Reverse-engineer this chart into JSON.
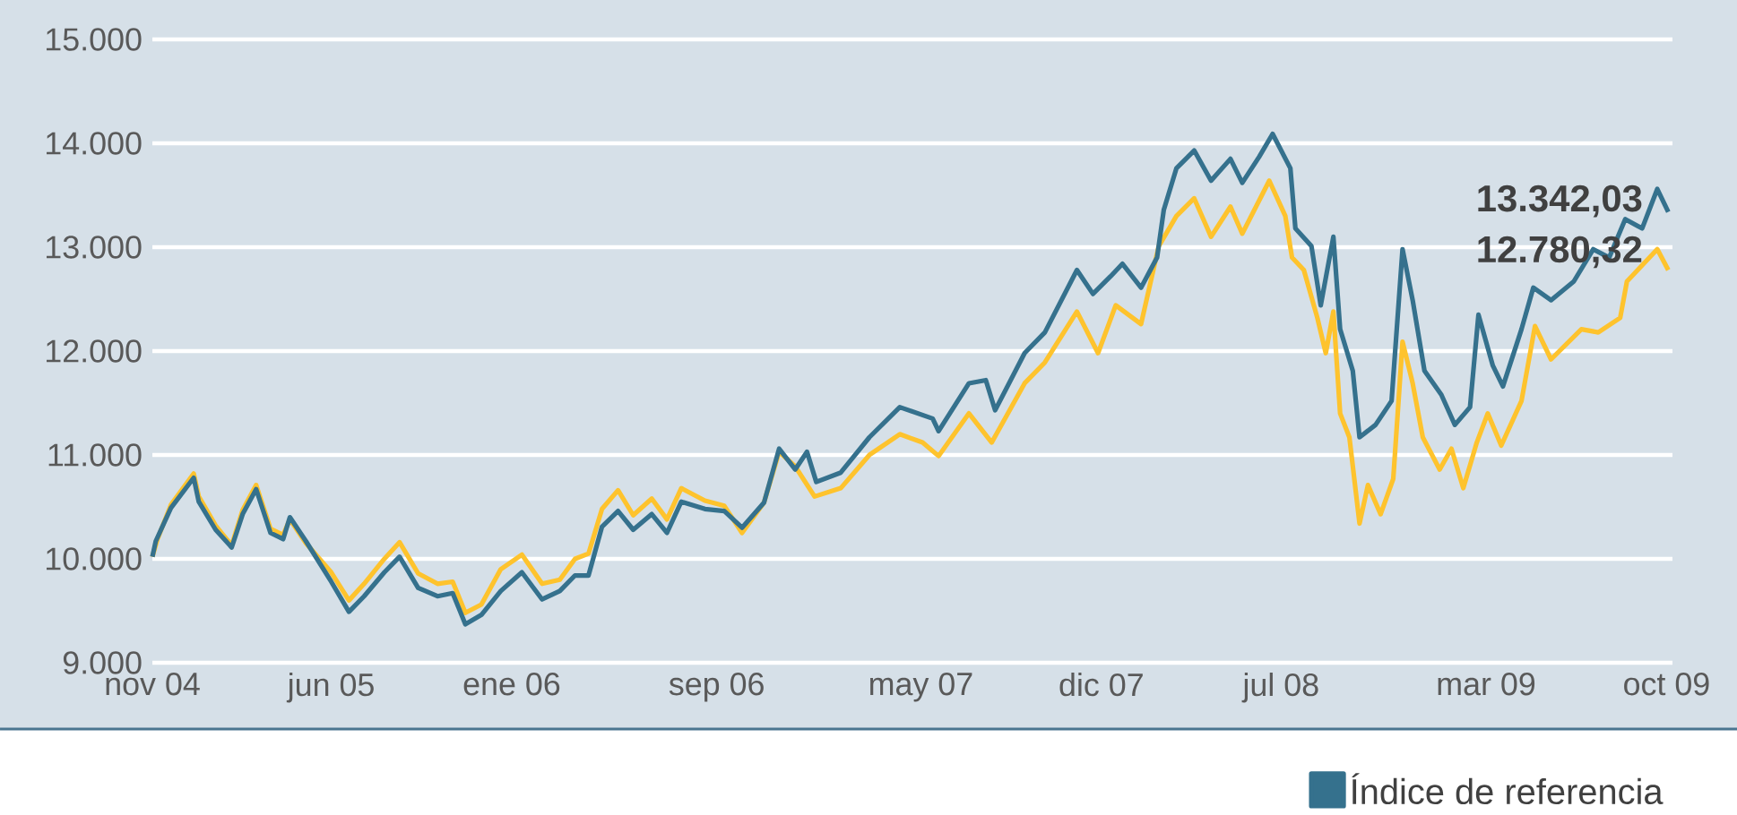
{
  "chart_data": {
    "type": "line",
    "xlim": [
      "2004-11-01",
      "2009-10-08"
    ],
    "xticks": [
      {
        "value": "2004-11-01",
        "label": "nov 04"
      },
      {
        "value": "2005-06-01",
        "label": "jun 05"
      },
      {
        "value": "2006-01-01",
        "label": "ene 06"
      },
      {
        "value": "2006-09-01",
        "label": "sep 06"
      },
      {
        "value": "2007-05-01",
        "label": "may 07"
      },
      {
        "value": "2007-12-01",
        "label": "dic 07"
      },
      {
        "value": "2008-07-01",
        "label": "jul 08"
      },
      {
        "value": "2009-03-01",
        "label": "mar 09"
      },
      {
        "value": "2009-10-01",
        "label": "oct 09"
      }
    ],
    "ylim": [
      9000,
      15000
    ],
    "yticks": [
      {
        "value": 9000,
        "label": "9.000"
      },
      {
        "value": 10000,
        "label": "10.000"
      },
      {
        "value": 11000,
        "label": "11.000"
      },
      {
        "value": 12000,
        "label": "12.000"
      },
      {
        "value": 13000,
        "label": "13.000"
      },
      {
        "value": 14000,
        "label": "14.000"
      },
      {
        "value": 15000,
        "label": "15.000"
      }
    ],
    "grid": "y",
    "legend": "bottom right",
    "series": [
      {
        "color": "#fec32d",
        "x": [
          "2004-11-01",
          "2004-11-07",
          "2004-11-23",
          "2004-12-20",
          "2004-12-26",
          "2005-01-15",
          "2005-02-03",
          "2005-02-16",
          "2005-03-04",
          "2005-03-21",
          "2005-04-05",
          "2005-04-13",
          "2005-05-02",
          "2005-06-01",
          "2005-06-22",
          "2005-07-10",
          "2005-08-03",
          "2005-08-21",
          "2005-09-12",
          "2005-10-05",
          "2005-10-23",
          "2005-11-07",
          "2005-11-26",
          "2005-12-19",
          "2006-01-13",
          "2006-02-06",
          "2006-02-27",
          "2006-03-17",
          "2006-04-02",
          "2006-04-18",
          "2006-05-07",
          "2006-05-25",
          "2006-06-16",
          "2006-07-04",
          "2006-07-21",
          "2006-08-18",
          "2006-09-10",
          "2006-10-01",
          "2006-10-27",
          "2006-11-14",
          "2006-12-03",
          "2006-12-26",
          "2007-01-26",
          "2007-03-01",
          "2007-04-06",
          "2007-05-03",
          "2007-05-22",
          "2007-06-27",
          "2007-07-24",
          "2007-09-01",
          "2007-09-25",
          "2007-11-02",
          "2007-11-27",
          "2007-12-18",
          "2008-01-17",
          "2008-02-07",
          "2008-02-28",
          "2008-03-20",
          "2008-04-09",
          "2008-05-02",
          "2008-05-16",
          "2008-06-17",
          "2008-07-06",
          "2008-07-14",
          "2008-07-28",
          "2008-08-13",
          "2008-08-23",
          "2008-09-01",
          "2008-09-09",
          "2008-09-20",
          "2008-10-02",
          "2008-10-12",
          "2008-10-27",
          "2008-11-11",
          "2008-11-22",
          "2008-12-04",
          "2008-12-16",
          "2009-01-05",
          "2009-01-19",
          "2009-02-02",
          "2009-02-18",
          "2009-03-03",
          "2009-03-19",
          "2009-04-12",
          "2009-04-28",
          "2009-05-17",
          "2009-06-22",
          "2009-07-12",
          "2009-08-07",
          "2009-08-15",
          "2009-09-20",
          "2009-10-03"
        ],
        "values": [
          10020,
          10190,
          10520,
          10820,
          10600,
          10320,
          10130,
          10470,
          10710,
          10290,
          10230,
          10380,
          10150,
          9870,
          9600,
          9760,
          10000,
          10160,
          9860,
          9760,
          9780,
          9480,
          9560,
          9900,
          10040,
          9760,
          9800,
          10000,
          10050,
          10480,
          10660,
          10420,
          10580,
          10380,
          10680,
          10560,
          10510,
          10250,
          10540,
          11030,
          10890,
          10600,
          10680,
          11000,
          11200,
          11120,
          10990,
          11400,
          11120,
          11690,
          11890,
          12380,
          11980,
          12440,
          12260,
          13010,
          13300,
          13470,
          13100,
          13390,
          13130,
          13640,
          13300,
          12900,
          12780,
          12320,
          11980,
          12380,
          11400,
          11170,
          10340,
          10710,
          10430,
          10770,
          12090,
          11690,
          11170,
          10860,
          11060,
          10680,
          11120,
          11400,
          11090,
          11520,
          12240,
          11920,
          12210,
          12180,
          12320,
          12670,
          12980,
          12780
        ]
      },
      {
        "name": "Índice de referencia",
        "color": "#35718d",
        "x": [
          "2004-11-01",
          "2004-11-05",
          "2004-11-23",
          "2004-12-20",
          "2004-12-26",
          "2005-01-15",
          "2005-02-03",
          "2005-02-16",
          "2005-03-04",
          "2005-03-21",
          "2005-04-05",
          "2005-04-13",
          "2005-05-02",
          "2005-06-01",
          "2005-06-22",
          "2005-07-10",
          "2005-08-03",
          "2005-08-21",
          "2005-09-12",
          "2005-10-05",
          "2005-10-23",
          "2005-11-07",
          "2005-11-26",
          "2005-12-19",
          "2006-01-13",
          "2006-02-06",
          "2006-02-27",
          "2006-03-17",
          "2006-04-02",
          "2006-04-18",
          "2006-05-07",
          "2006-05-25",
          "2006-06-16",
          "2006-07-04",
          "2006-07-21",
          "2006-08-18",
          "2006-09-10",
          "2006-10-01",
          "2006-10-27",
          "2006-11-14",
          "2006-12-03",
          "2006-12-17",
          "2006-12-28",
          "2007-01-26",
          "2007-03-01",
          "2007-04-06",
          "2007-05-15",
          "2007-05-22",
          "2007-06-27",
          "2007-07-17",
          "2007-07-28",
          "2007-09-01",
          "2007-09-25",
          "2007-11-02",
          "2007-11-21",
          "2007-12-12",
          "2007-12-26",
          "2008-01-17",
          "2008-02-05",
          "2008-02-13",
          "2008-02-28",
          "2008-03-20",
          "2008-04-09",
          "2008-05-02",
          "2008-05-16",
          "2008-06-05",
          "2008-06-21",
          "2008-07-12",
          "2008-07-18",
          "2008-08-06",
          "2008-08-17",
          "2008-09-01",
          "2008-09-09",
          "2008-09-24",
          "2008-10-02",
          "2008-10-21",
          "2008-11-09",
          "2008-11-22",
          "2008-12-04",
          "2008-12-18",
          "2009-01-07",
          "2009-01-23",
          "2009-02-10",
          "2009-02-20",
          "2009-03-09",
          "2009-03-21",
          "2009-04-12",
          "2009-04-26",
          "2009-05-17",
          "2009-06-13",
          "2009-07-06",
          "2009-07-25",
          "2009-08-13",
          "2009-09-02",
          "2009-09-20",
          "2009-10-03"
        ],
        "values": [
          10020,
          10170,
          10490,
          10780,
          10550,
          10280,
          10110,
          10430,
          10670,
          10250,
          10190,
          10400,
          10170,
          9780,
          9490,
          9640,
          9870,
          10020,
          9720,
          9640,
          9670,
          9370,
          9460,
          9690,
          9870,
          9610,
          9690,
          9840,
          9840,
          10310,
          10460,
          10280,
          10430,
          10250,
          10550,
          10480,
          10460,
          10300,
          10540,
          11060,
          10860,
          11030,
          10740,
          10830,
          11170,
          11460,
          11350,
          11230,
          11690,
          11720,
          11430,
          11980,
          12180,
          12780,
          12550,
          12720,
          12840,
          12610,
          12900,
          13360,
          13760,
          13930,
          13640,
          13850,
          13620,
          13870,
          14090,
          13760,
          13180,
          13010,
          12440,
          13100,
          12210,
          11810,
          11170,
          11290,
          11520,
          12980,
          12490,
          11810,
          11580,
          11290,
          11460,
          12350,
          11860,
          11660,
          12210,
          12610,
          12490,
          12670,
          12980,
          12900,
          13270,
          13180,
          13560,
          13340
        ]
      }
    ],
    "annotations": [
      {
        "text": "13.342,03",
        "x": "2009-10-03",
        "y": 13340
      },
      {
        "text": "12.780,32",
        "x": "2009-10-03",
        "y": 12780
      }
    ]
  }
}
